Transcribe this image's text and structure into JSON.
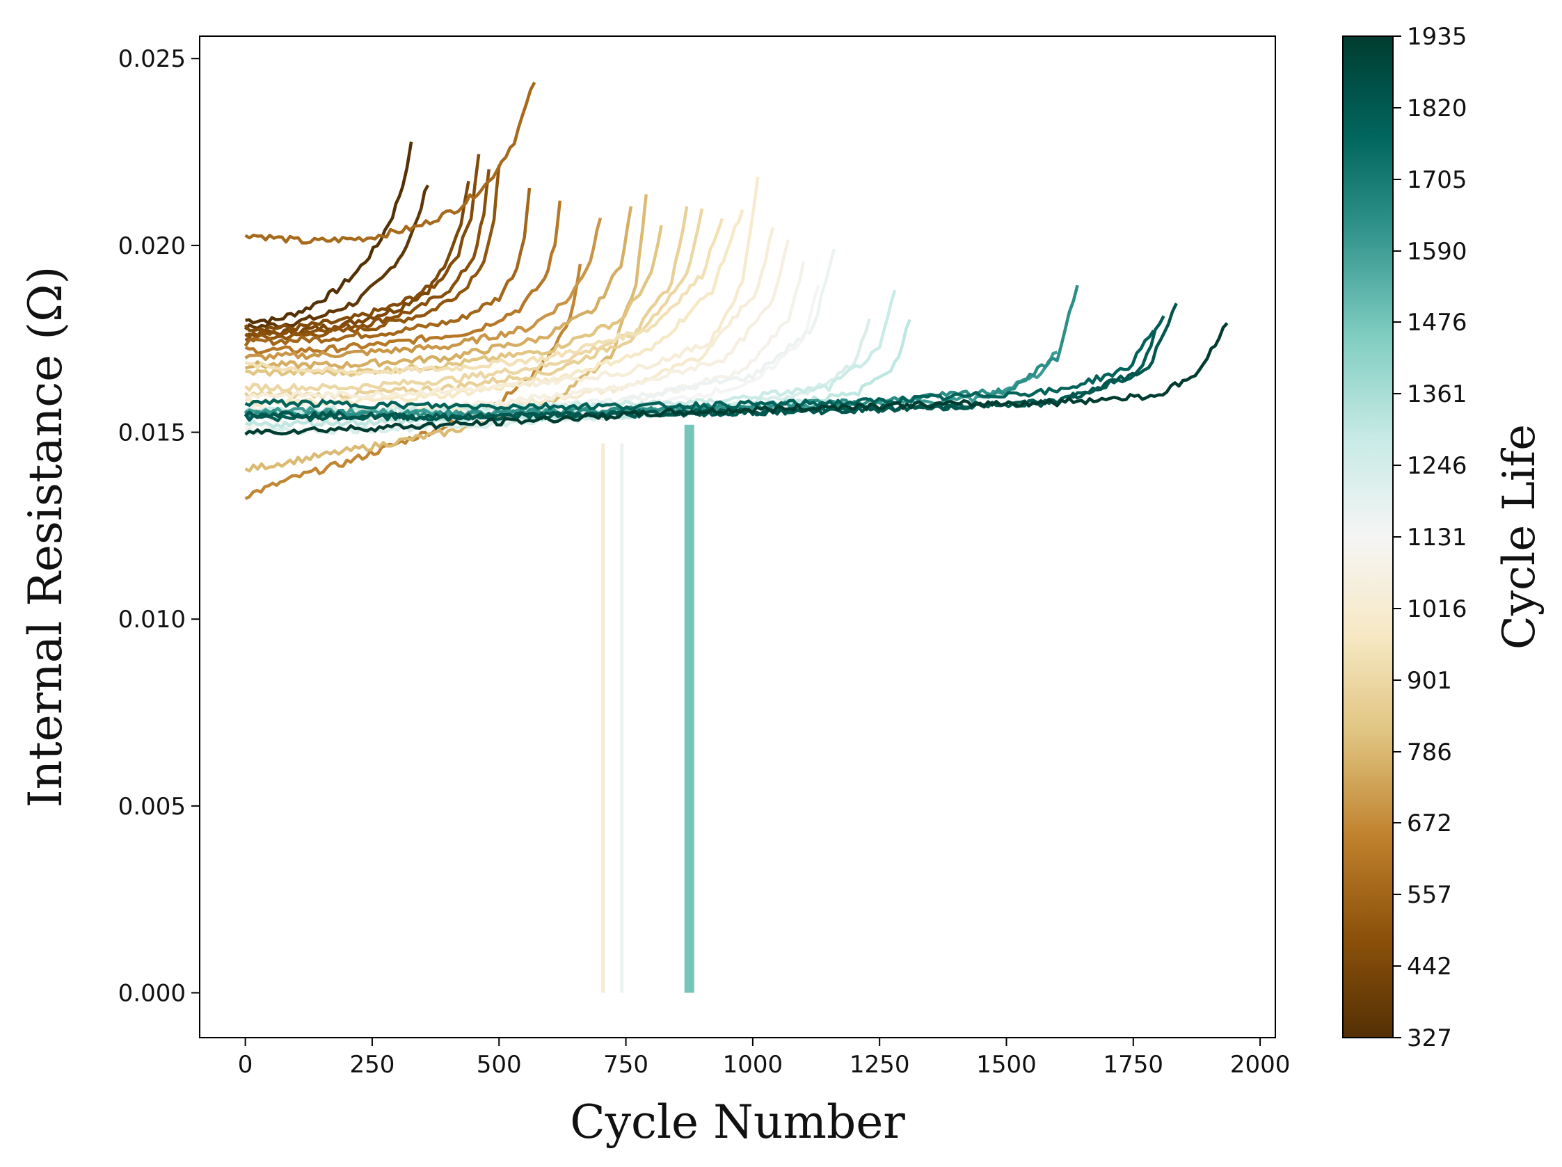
{
  "chart_data": {
    "type": "line",
    "title": "",
    "xlabel": "Cycle Number",
    "ylabel": "Internal Resistance (Ω)",
    "xlim": [
      -90,
      2030
    ],
    "ylim": [
      -0.0012,
      0.0256
    ],
    "xticks": [
      0,
      250,
      500,
      750,
      1000,
      1250,
      1500,
      1750,
      2000
    ],
    "xtick_labels": [
      "0",
      "250",
      "500",
      "750",
      "1000",
      "1250",
      "1500",
      "1750",
      "2000"
    ],
    "yticks": [
      0.0,
      0.005,
      0.01,
      0.015,
      0.02,
      0.025
    ],
    "ytick_labels": [
      "0.000",
      "0.005",
      "0.010",
      "0.015",
      "0.020",
      "0.025"
    ],
    "grid": false,
    "colorbar": {
      "label": "Cycle Life",
      "min": 327,
      "max": 1935,
      "tick_values": [
        327,
        442,
        557,
        672,
        786,
        901,
        1016,
        1131,
        1246,
        1361,
        1476,
        1590,
        1705,
        1820,
        1935
      ],
      "tick_labels": [
        "327",
        "442",
        "557",
        "672",
        "786",
        "901",
        "1016",
        "1131",
        "1246",
        "1361",
        "1476",
        "1590",
        "1705",
        "1820",
        "1935"
      ],
      "colormap_stops": [
        {
          "pos": 0.0,
          "color": "#543005"
        },
        {
          "pos": 0.1,
          "color": "#8c510a"
        },
        {
          "pos": 0.2,
          "color": "#bf812d"
        },
        {
          "pos": 0.3,
          "color": "#dfc27d"
        },
        {
          "pos": 0.4,
          "color": "#f6e8c3"
        },
        {
          "pos": 0.5,
          "color": "#f5f5f5"
        },
        {
          "pos": 0.6,
          "color": "#c7eae5"
        },
        {
          "pos": 0.7,
          "color": "#80cdc1"
        },
        {
          "pos": 0.8,
          "color": "#35978f"
        },
        {
          "pos": 0.9,
          "color": "#01665e"
        },
        {
          "pos": 1.0,
          "color": "#003c30"
        }
      ]
    },
    "series": [
      {
        "name": "cell_327",
        "cycle_life": 327,
        "x": [
          0,
          60,
          120,
          180,
          220,
          260,
          290,
          310,
          327
        ],
        "y": [
          0.018,
          0.018,
          0.0183,
          0.0188,
          0.0193,
          0.02,
          0.0208,
          0.0216,
          0.0227
        ]
      },
      {
        "name": "cell_360",
        "cycle_life": 360,
        "x": [
          0,
          80,
          150,
          220,
          270,
          310,
          340,
          360
        ],
        "y": [
          0.0178,
          0.0179,
          0.0181,
          0.0185,
          0.0191,
          0.0198,
          0.0207,
          0.0217
        ]
      },
      {
        "name": "cell_440",
        "cycle_life": 440,
        "x": [
          0,
          100,
          200,
          300,
          360,
          400,
          425,
          440
        ],
        "y": [
          0.0176,
          0.0177,
          0.0179,
          0.0183,
          0.0188,
          0.0196,
          0.0206,
          0.0218
        ]
      },
      {
        "name": "cell_460",
        "cycle_life": 460,
        "x": [
          0,
          100,
          200,
          300,
          380,
          420,
          445,
          460
        ],
        "y": [
          0.0178,
          0.0178,
          0.018,
          0.0184,
          0.019,
          0.0198,
          0.0208,
          0.0225
        ]
      },
      {
        "name": "cell_480",
        "cycle_life": 480,
        "x": [
          0,
          120,
          240,
          340,
          410,
          450,
          470,
          480
        ],
        "y": [
          0.0176,
          0.0177,
          0.0179,
          0.0183,
          0.0189,
          0.0197,
          0.0208,
          0.022
        ]
      },
      {
        "name": "cell_500",
        "cycle_life": 500,
        "x": [
          0,
          120,
          250,
          360,
          430,
          470,
          490,
          500
        ],
        "y": [
          0.0175,
          0.0176,
          0.0178,
          0.0182,
          0.0188,
          0.0196,
          0.0206,
          0.0222
        ]
      },
      {
        "name": "cell_560",
        "cycle_life": 560,
        "x": [
          0,
          150,
          300,
          420,
          500,
          535,
          550,
          560
        ],
        "y": [
          0.0174,
          0.0175,
          0.0177,
          0.018,
          0.0186,
          0.0194,
          0.0203,
          0.0215
        ]
      },
      {
        "name": "cell_570",
        "cycle_life": 570,
        "x": [
          0,
          120,
          240,
          340,
          420,
          480,
          530,
          570
        ],
        "y": [
          0.0203,
          0.0201,
          0.0202,
          0.0205,
          0.021,
          0.0217,
          0.0228,
          0.0244
        ]
      },
      {
        "name": "cell_620",
        "cycle_life": 620,
        "x": [
          0,
          150,
          300,
          450,
          540,
          590,
          610,
          620
        ],
        "y": [
          0.0172,
          0.0172,
          0.0174,
          0.0177,
          0.0183,
          0.0191,
          0.02,
          0.0212
        ]
      },
      {
        "name": "cell_660",
        "cycle_life": 660,
        "x": [
          0,
          100,
          200,
          300,
          400,
          500,
          580,
          640,
          660
        ],
        "y": [
          0.0133,
          0.0138,
          0.0142,
          0.0147,
          0.0152,
          0.0158,
          0.0167,
          0.018,
          0.0195
        ]
      },
      {
        "name": "cell_700",
        "cycle_life": 700,
        "x": [
          0,
          200,
          400,
          560,
          640,
          680,
          700
        ],
        "y": [
          0.017,
          0.0171,
          0.0173,
          0.0178,
          0.0186,
          0.0196,
          0.0208
        ]
      },
      {
        "name": "cell_760",
        "cycle_life": 760,
        "x": [
          0,
          200,
          400,
          580,
          690,
          740,
          760
        ],
        "y": [
          0.0168,
          0.0168,
          0.017,
          0.0175,
          0.0183,
          0.0195,
          0.021
        ]
      },
      {
        "name": "cell_790",
        "cycle_life": 790,
        "x": [
          0,
          200,
          400,
          600,
          720,
          770,
          790
        ],
        "y": [
          0.014,
          0.0145,
          0.015,
          0.0158,
          0.017,
          0.019,
          0.0213
        ]
      },
      {
        "name": "cell_820",
        "cycle_life": 820,
        "x": [
          0,
          200,
          400,
          600,
          740,
          800,
          820
        ],
        "y": [
          0.0166,
          0.0166,
          0.0168,
          0.0172,
          0.018,
          0.0192,
          0.0205
        ]
      },
      {
        "name": "cell_870",
        "cycle_life": 870,
        "x": [
          0,
          200,
          400,
          600,
          760,
          840,
          870
        ],
        "y": [
          0.016,
          0.016,
          0.0162,
          0.0166,
          0.0175,
          0.019,
          0.021
        ]
      },
      {
        "name": "cell_900",
        "cycle_life": 900,
        "x": [
          0,
          200,
          400,
          600,
          780,
          870,
          900
        ],
        "y": [
          0.0162,
          0.0162,
          0.0164,
          0.0168,
          0.0177,
          0.0192,
          0.021
        ]
      },
      {
        "name": "cell_940",
        "cycle_life": 940,
        "x": [
          0,
          200,
          400,
          600,
          800,
          900,
          940
        ],
        "y": [
          0.0168,
          0.0166,
          0.0167,
          0.017,
          0.0178,
          0.0192,
          0.0208
        ]
      },
      {
        "name": "cell_980",
        "cycle_life": 980,
        "x": [
          0,
          200,
          400,
          600,
          800,
          920,
          980
        ],
        "y": [
          0.0158,
          0.0158,
          0.016,
          0.0164,
          0.0172,
          0.0188,
          0.021
        ]
      },
      {
        "name": "cell_1010",
        "cycle_life": 1010,
        "x": [
          0,
          250,
          500,
          750,
          900,
          980,
          1010
        ],
        "y": [
          0.0155,
          0.0155,
          0.0157,
          0.0162,
          0.017,
          0.019,
          0.0218
        ]
      },
      {
        "name": "cell_1040",
        "cycle_life": 1040,
        "x": [
          0,
          250,
          500,
          750,
          920,
          1010,
          1040
        ],
        "y": [
          0.016,
          0.016,
          0.0162,
          0.0166,
          0.0174,
          0.0188,
          0.0205
        ]
      },
      {
        "name": "cell_1070",
        "cycle_life": 1070,
        "x": [
          0,
          250,
          500,
          750,
          950,
          1040,
          1070
        ],
        "y": [
          0.0156,
          0.0156,
          0.0158,
          0.0162,
          0.017,
          0.0185,
          0.0202
        ]
      },
      {
        "name": "cell_1100",
        "cycle_life": 1100,
        "x": [
          0,
          250,
          500,
          750,
          980,
          1070,
          1100
        ],
        "y": [
          0.0152,
          0.0153,
          0.0155,
          0.0158,
          0.0166,
          0.018,
          0.0195
        ]
      },
      {
        "name": "cell_1130",
        "cycle_life": 1130,
        "x": [
          0,
          250,
          500,
          750,
          1000,
          1100,
          1130
        ],
        "y": [
          0.015,
          0.0151,
          0.0153,
          0.0156,
          0.0163,
          0.0175,
          0.019
        ]
      },
      {
        "name": "cell_1160",
        "cycle_life": 1160,
        "x": [
          0,
          250,
          500,
          750,
          1000,
          1120,
          1160
        ],
        "y": [
          0.0154,
          0.0154,
          0.0156,
          0.0159,
          0.0165,
          0.0178,
          0.0199
        ]
      },
      {
        "name": "cell_1230",
        "cycle_life": 1230,
        "x": [
          0,
          300,
          600,
          900,
          1100,
          1200,
          1230
        ],
        "y": [
          0.015,
          0.0151,
          0.0153,
          0.0156,
          0.016,
          0.0168,
          0.018
        ]
      },
      {
        "name": "cell_1280",
        "cycle_life": 1280,
        "x": [
          0,
          300,
          600,
          900,
          1150,
          1250,
          1280
        ],
        "y": [
          0.0156,
          0.0156,
          0.0157,
          0.0158,
          0.0162,
          0.0172,
          0.0188
        ]
      },
      {
        "name": "cell_1310",
        "cycle_life": 1310,
        "x": [
          0,
          300,
          600,
          900,
          1200,
          1280,
          1310
        ],
        "y": [
          0.0152,
          0.0153,
          0.0154,
          0.0156,
          0.016,
          0.0168,
          0.018
        ]
      },
      {
        "name": "cell_1600",
        "cycle_life": 1600,
        "x": [
          0,
          400,
          800,
          1200,
          1450,
          1560,
          1600
        ],
        "y": [
          0.0156,
          0.0155,
          0.0156,
          0.0157,
          0.0159,
          0.0165,
          0.0172
        ]
      },
      {
        "name": "cell_1640",
        "cycle_life": 1640,
        "x": [
          0,
          400,
          800,
          1200,
          1500,
          1600,
          1640
        ],
        "y": [
          0.0155,
          0.0155,
          0.0156,
          0.0158,
          0.0161,
          0.017,
          0.0189
        ]
      },
      {
        "name": "cell_1790",
        "cycle_life": 1790,
        "x": [
          0,
          400,
          800,
          1200,
          1600,
          1740,
          1790
        ],
        "y": [
          0.0158,
          0.0157,
          0.0157,
          0.0158,
          0.0161,
          0.0167,
          0.0178
        ]
      },
      {
        "name": "cell_1810",
        "cycle_life": 1810,
        "x": [
          0,
          400,
          800,
          1200,
          1600,
          1760,
          1810
        ],
        "y": [
          0.0154,
          0.0154,
          0.0155,
          0.0156,
          0.0158,
          0.0166,
          0.0182
        ]
      },
      {
        "name": "cell_1835",
        "cycle_life": 1835,
        "x": [
          0,
          400,
          800,
          1200,
          1600,
          1780,
          1835
        ],
        "y": [
          0.0155,
          0.0154,
          0.0155,
          0.0156,
          0.0158,
          0.0167,
          0.0184
        ]
      },
      {
        "name": "cell_1935",
        "cycle_life": 1935,
        "x": [
          0,
          400,
          800,
          1200,
          1600,
          1800,
          1880,
          1935
        ],
        "y": [
          0.015,
          0.0152,
          0.0155,
          0.0157,
          0.0158,
          0.016,
          0.0166,
          0.018
        ]
      }
    ],
    "drop_lines": [
      {
        "name": "drop_705",
        "cycle_life": 1016,
        "x": 705,
        "y_from": 0.0147,
        "y_to": 0.0
      },
      {
        "name": "drop_742",
        "cycle_life": 1160,
        "x": 742,
        "y_from": 0.0147,
        "y_to": 0.0
      },
      {
        "name": "drop_875",
        "cycle_life": 1476,
        "x": 875,
        "y_from": 0.0152,
        "y_to": 0.0
      }
    ]
  }
}
